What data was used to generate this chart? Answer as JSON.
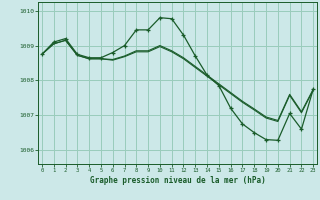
{
  "title": "Graphe pression niveau de la mer (hPa)",
  "bg_color": "#cce8e8",
  "grid_color": "#99ccbb",
  "line_color": "#1a5c2a",
  "ylim": [
    1005.6,
    1010.25
  ],
  "xlim": [
    -0.3,
    23.3
  ],
  "yticks": [
    1006,
    1007,
    1008,
    1009,
    1010
  ],
  "xticks": [
    0,
    1,
    2,
    3,
    4,
    5,
    6,
    7,
    8,
    9,
    10,
    11,
    12,
    13,
    14,
    15,
    16,
    17,
    18,
    19,
    20,
    21,
    22,
    23
  ],
  "line_peak_x": [
    0,
    1,
    2,
    3,
    4,
    5,
    6,
    7,
    8,
    9,
    10,
    11,
    12,
    13,
    14,
    15,
    16,
    17,
    18,
    19,
    20,
    21,
    22,
    23
  ],
  "line_peak_y": [
    1008.75,
    1009.1,
    1009.2,
    1008.75,
    1008.65,
    1008.65,
    1008.8,
    1009.0,
    1009.45,
    1009.45,
    1009.8,
    1009.77,
    1009.3,
    1008.7,
    1008.15,
    1007.85,
    1007.2,
    1006.75,
    1006.5,
    1006.3,
    1006.28,
    1007.05,
    1006.6,
    1007.75
  ],
  "line_flat1_x": [
    0,
    1,
    2,
    3,
    4,
    5,
    6,
    7,
    8,
    9,
    10,
    11,
    12,
    13,
    14,
    15,
    16,
    17,
    18,
    19,
    20,
    21,
    22,
    23
  ],
  "line_flat1_y": [
    1008.75,
    1009.05,
    1009.15,
    1008.72,
    1008.62,
    1008.62,
    1008.6,
    1008.7,
    1008.85,
    1008.85,
    1009.0,
    1008.85,
    1008.65,
    1008.4,
    1008.15,
    1007.9,
    1007.65,
    1007.4,
    1007.18,
    1006.95,
    1006.85,
    1007.6,
    1007.1,
    1007.75
  ],
  "line_flat2_x": [
    0,
    1,
    2,
    3,
    4,
    5,
    6,
    7,
    8,
    9,
    10,
    11,
    12,
    13,
    14,
    15,
    16,
    17,
    18,
    19,
    20,
    21,
    22,
    23
  ],
  "line_flat2_y": [
    1008.75,
    1009.05,
    1009.15,
    1008.72,
    1008.62,
    1008.62,
    1008.58,
    1008.68,
    1008.82,
    1008.82,
    1008.97,
    1008.82,
    1008.62,
    1008.37,
    1008.12,
    1007.87,
    1007.62,
    1007.37,
    1007.15,
    1006.92,
    1006.82,
    1007.57,
    1007.07,
    1007.72
  ]
}
